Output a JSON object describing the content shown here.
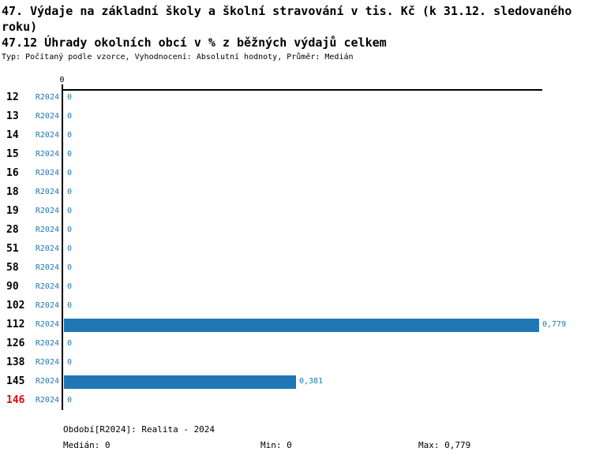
{
  "header": {
    "title_line1": "47. Výdaje na základní školy a školní stravování v tis. Kč (k 31.12. sledovaného",
    "title_line2": "roku)",
    "subtitle": "47.12 Úhrady okolních obcí v % z běžných výdajů celkem",
    "meta": "Typ: Počítaný podle vzorce, Vyhodnocení: Absolutní hodnoty, Průměr: Medián"
  },
  "chart_data": {
    "type": "bar",
    "orientation": "horizontal",
    "title": "47. Výdaje na základní školy a školní stravování v tis. Kč (k 31.12. sledovaného roku)",
    "subtitle": "47.12 Úhrady okolních obcí v % z běžných výdajů celkem",
    "value_axis": {
      "top_tick_label": "0",
      "min": 0,
      "max": 0.779
    },
    "series_period_label": "R2024",
    "categories": [
      "12",
      "13",
      "14",
      "15",
      "16",
      "18",
      "19",
      "28",
      "51",
      "58",
      "90",
      "102",
      "112",
      "126",
      "138",
      "145",
      "146"
    ],
    "values": [
      0,
      0,
      0,
      0,
      0,
      0,
      0,
      0,
      0,
      0,
      0,
      0,
      0.779,
      0,
      0,
      0.381,
      0
    ],
    "value_labels": [
      "0",
      "0",
      "0",
      "0",
      "0",
      "0",
      "0",
      "0",
      "0",
      "0",
      "0",
      "0",
      "0,779",
      "0",
      "0",
      "0,381",
      "0"
    ],
    "highlighted_categories": [
      "146"
    ],
    "bar_color": "#1f77b4",
    "text_color": "#1f77b4",
    "highlight_color": "#e30613",
    "grid": false,
    "legend": false
  },
  "footer": {
    "period": "Období[R2024]: Realita - 2024",
    "median": "Medián: 0",
    "min": "Min: 0",
    "max": "Max: 0,779"
  }
}
